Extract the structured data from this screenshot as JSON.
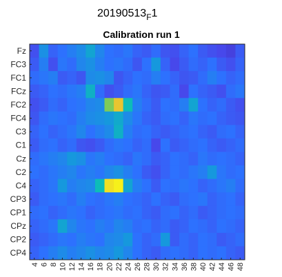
{
  "figure": {
    "super_title_main": "20190513",
    "super_title_sub": "F",
    "super_title_end": "1"
  },
  "chart_data": {
    "type": "heatmap",
    "title": "Calibration run 1",
    "xlabel": "",
    "ylabel": "",
    "x_tick_labels": [
      "4",
      "6",
      "8",
      "10",
      "12",
      "14",
      "16",
      "18",
      "20",
      "22",
      "24",
      "26",
      "28",
      "30",
      "32",
      "34",
      "36",
      "38",
      "40",
      "42",
      "44",
      "46",
      "48"
    ],
    "x_range": [
      3,
      49
    ],
    "y_tick_labels": [
      "Fz",
      "FC3",
      "FC1",
      "FCz",
      "FC2",
      "FC4",
      "C3",
      "C1",
      "Cz",
      "C2",
      "C4",
      "CP3",
      "CP1",
      "CPz",
      "CP2",
      "CP4"
    ],
    "colormap": "parula",
    "color_range": [
      0,
      1
    ],
    "grid": false,
    "legend": "none",
    "values": [
      [
        0.18,
        0.42,
        0.25,
        0.3,
        0.35,
        0.4,
        0.5,
        0.38,
        0.3,
        0.28,
        0.32,
        0.25,
        0.22,
        0.28,
        0.2,
        0.18,
        0.25,
        0.3,
        0.22,
        0.18,
        0.15,
        0.12,
        0.22
      ],
      [
        0.22,
        0.35,
        0.18,
        0.32,
        0.28,
        0.38,
        0.42,
        0.35,
        0.3,
        0.32,
        0.28,
        0.2,
        0.3,
        0.45,
        0.25,
        0.15,
        0.22,
        0.28,
        0.25,
        0.3,
        0.22,
        0.18,
        0.25
      ],
      [
        0.28,
        0.32,
        0.35,
        0.22,
        0.25,
        0.2,
        0.4,
        0.42,
        0.38,
        0.2,
        0.25,
        0.3,
        0.28,
        0.35,
        0.3,
        0.25,
        0.2,
        0.22,
        0.28,
        0.35,
        0.3,
        0.25,
        0.28
      ],
      [
        0.22,
        0.25,
        0.3,
        0.28,
        0.32,
        0.35,
        0.55,
        0.28,
        0.18,
        0.22,
        0.28,
        0.32,
        0.25,
        0.2,
        0.22,
        0.28,
        0.15,
        0.3,
        0.25,
        0.22,
        0.18,
        0.28,
        0.32
      ],
      [
        0.18,
        0.22,
        0.28,
        0.25,
        0.3,
        0.32,
        0.38,
        0.4,
        0.75,
        0.9,
        0.6,
        0.35,
        0.28,
        0.22,
        0.3,
        0.28,
        0.35,
        0.5,
        0.3,
        0.25,
        0.28,
        0.22,
        0.18
      ],
      [
        0.2,
        0.28,
        0.32,
        0.3,
        0.28,
        0.35,
        0.4,
        0.42,
        0.45,
        0.52,
        0.4,
        0.32,
        0.25,
        0.22,
        0.28,
        0.3,
        0.25,
        0.32,
        0.28,
        0.3,
        0.25,
        0.22,
        0.2
      ],
      [
        0.25,
        0.3,
        0.25,
        0.28,
        0.32,
        0.38,
        0.3,
        0.35,
        0.4,
        0.55,
        0.35,
        0.28,
        0.3,
        0.25,
        0.22,
        0.25,
        0.28,
        0.3,
        0.25,
        0.22,
        0.28,
        0.3,
        0.25
      ],
      [
        0.22,
        0.28,
        0.3,
        0.25,
        0.28,
        0.2,
        0.18,
        0.22,
        0.28,
        0.32,
        0.3,
        0.25,
        0.28,
        0.15,
        0.3,
        0.22,
        0.25,
        0.28,
        0.3,
        0.25,
        0.22,
        0.25,
        0.28
      ],
      [
        0.28,
        0.32,
        0.35,
        0.38,
        0.45,
        0.42,
        0.32,
        0.35,
        0.3,
        0.28,
        0.25,
        0.32,
        0.28,
        0.22,
        0.25,
        0.3,
        0.28,
        0.25,
        0.32,
        0.28,
        0.3,
        0.28,
        0.25
      ],
      [
        0.3,
        0.28,
        0.32,
        0.35,
        0.38,
        0.32,
        0.35,
        0.32,
        0.38,
        0.42,
        0.35,
        0.3,
        0.22,
        0.18,
        0.25,
        0.3,
        0.28,
        0.32,
        0.35,
        0.45,
        0.32,
        0.28,
        0.3
      ],
      [
        0.25,
        0.28,
        0.32,
        0.45,
        0.35,
        0.38,
        0.4,
        0.6,
        0.95,
        0.98,
        0.5,
        0.35,
        0.3,
        0.22,
        0.3,
        0.28,
        0.32,
        0.3,
        0.25,
        0.28,
        0.32,
        0.35,
        0.28
      ],
      [
        0.22,
        0.28,
        0.3,
        0.32,
        0.28,
        0.35,
        0.3,
        0.28,
        0.32,
        0.35,
        0.3,
        0.28,
        0.25,
        0.3,
        0.25,
        0.22,
        0.28,
        0.3,
        0.32,
        0.25,
        0.28,
        0.3,
        0.25
      ],
      [
        0.28,
        0.3,
        0.25,
        0.28,
        0.32,
        0.3,
        0.25,
        0.28,
        0.3,
        0.32,
        0.28,
        0.3,
        0.25,
        0.22,
        0.28,
        0.3,
        0.25,
        0.28,
        0.22,
        0.25,
        0.28,
        0.3,
        0.28
      ],
      [
        0.25,
        0.28,
        0.32,
        0.5,
        0.38,
        0.32,
        0.3,
        0.35,
        0.32,
        0.38,
        0.35,
        0.28,
        0.3,
        0.25,
        0.28,
        0.22,
        0.25,
        0.3,
        0.28,
        0.25,
        0.3,
        0.28,
        0.25
      ],
      [
        0.22,
        0.25,
        0.28,
        0.32,
        0.3,
        0.35,
        0.32,
        0.3,
        0.38,
        0.4,
        0.45,
        0.3,
        0.25,
        0.28,
        0.45,
        0.22,
        0.28,
        0.25,
        0.3,
        0.28,
        0.22,
        0.25,
        0.28
      ],
      [
        0.25,
        0.3,
        0.35,
        0.4,
        0.35,
        0.38,
        0.42,
        0.38,
        0.4,
        0.45,
        0.38,
        0.3,
        0.25,
        0.22,
        0.28,
        0.3,
        0.28,
        0.25,
        0.3,
        0.28,
        0.3,
        0.25,
        0.22
      ]
    ]
  }
}
